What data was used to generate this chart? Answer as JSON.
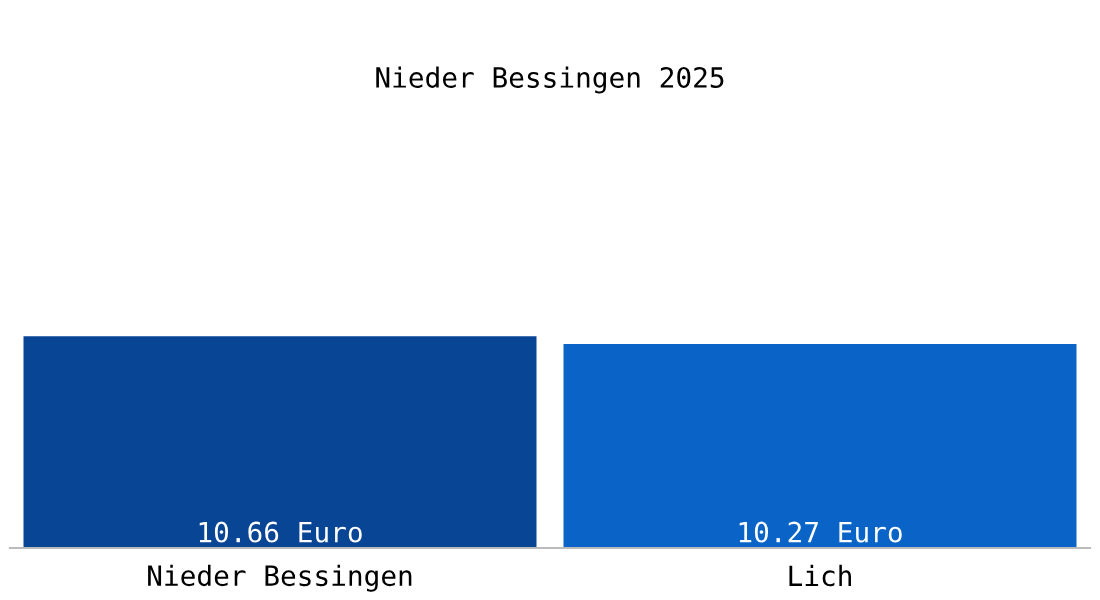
{
  "chart_data": {
    "type": "bar",
    "title": "Nieder Bessingen 2025",
    "categories": [
      "Nieder Bessingen",
      "Lich"
    ],
    "values": [
      10.66,
      10.27
    ],
    "colors": [
      "#084594",
      "#0a64c8"
    ],
    "value_labels": [
      "10.66 Euro",
      "10.27 Euro"
    ],
    "grid": false,
    "legend": false
  }
}
